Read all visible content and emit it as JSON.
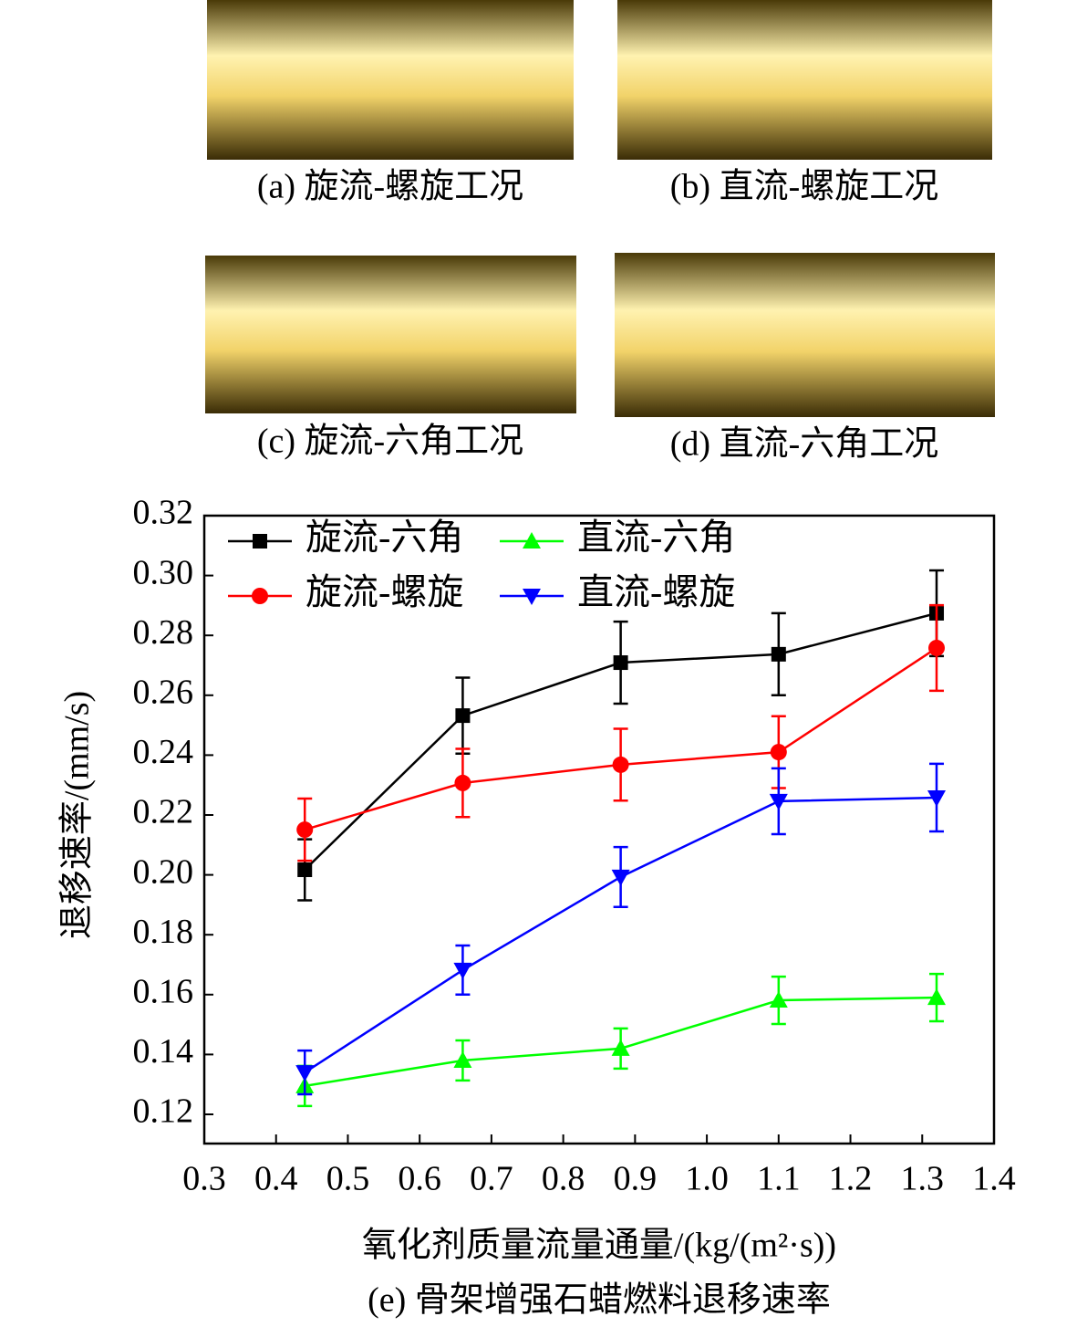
{
  "photos": [
    {
      "caption": "(a) 旋流-螺旋工况"
    },
    {
      "caption": "(b) 直流-螺旋工况"
    },
    {
      "caption": "(c) 旋流-六角工况"
    },
    {
      "caption": "(d) 直流-六角工况"
    }
  ],
  "chart_data": {
    "type": "line",
    "caption": "(e) 骨架增强石蜡燃料退移速率",
    "x_label": "氧化剂质量流量通量/(kg/(m²·s))",
    "y_label": "退移速率/(mm/s)",
    "x": [
      0.44,
      0.66,
      0.88,
      1.1,
      1.32
    ],
    "series": [
      {
        "name": "旋流-六角",
        "color": "#000000",
        "marker": "square",
        "values": [
          0.2017,
          0.2532,
          0.2709,
          0.2737,
          0.2874
        ],
        "errors": [
          0.0102,
          0.0127,
          0.0137,
          0.0137,
          0.0143
        ]
      },
      {
        "name": "直流-六角",
        "color": "#00ff00",
        "marker": "triangle-up",
        "values": [
          0.1295,
          0.138,
          0.142,
          0.1581,
          0.159
        ],
        "errors": [
          0.0067,
          0.0067,
          0.0067,
          0.0079,
          0.0079
        ]
      },
      {
        "name": "旋流-螺旋",
        "color": "#ff0000",
        "marker": "circle",
        "values": [
          0.2151,
          0.2307,
          0.2368,
          0.241,
          0.2758
        ],
        "errors": [
          0.0104,
          0.0114,
          0.012,
          0.012,
          0.0143
        ]
      },
      {
        "name": "直流-螺旋",
        "color": "#0000ff",
        "marker": "triangle-down",
        "values": [
          0.134,
          0.1682,
          0.1993,
          0.2246,
          0.2258
        ],
        "errors": [
          0.0073,
          0.0082,
          0.01,
          0.011,
          0.0113
        ]
      }
    ],
    "xlim": [
      0.3,
      1.4
    ],
    "xticks": [
      0.3,
      0.4,
      0.5,
      0.6,
      0.7,
      0.8,
      0.9,
      {
        "value": 1,
        "label": "1.0"
      },
      1.1,
      1.2,
      1.3,
      1.4
    ],
    "ylim": [
      0.12,
      0.32
    ],
    "yticks": [
      0.12,
      0.14,
      0.16,
      0.18,
      {
        "value": 0.2,
        "label": "0.20"
      },
      0.22,
      0.24,
      0.26,
      0.28,
      {
        "value": 0.3,
        "label": "0.30"
      },
      0.32
    ],
    "grid": false,
    "legend": "top-left"
  }
}
